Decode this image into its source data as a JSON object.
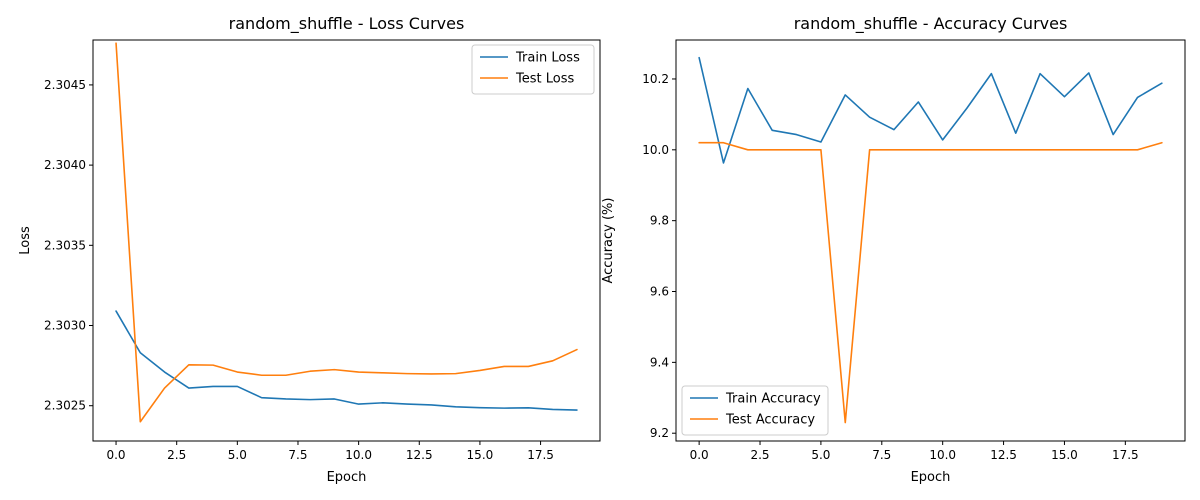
{
  "chart_data": [
    {
      "type": "line",
      "title": "random_shuffle - Loss Curves",
      "xlabel": "Epoch",
      "ylabel": "Loss",
      "xlim": [
        -0.95,
        19.95
      ],
      "ylim": [
        2.30228,
        2.30478
      ],
      "xticks": [
        0,
        2.5,
        5,
        7.5,
        10,
        12.5,
        15,
        17.5
      ],
      "xtick_labels": [
        "0.0",
        "2.5",
        "5.0",
        "7.5",
        "10.0",
        "12.5",
        "15.0",
        "17.5"
      ],
      "yticks": [
        2.3025,
        2.303,
        2.3035,
        2.304,
        2.3045
      ],
      "ytick_labels": [
        "2.3025",
        "2.3030",
        "2.3035",
        "2.3040",
        "2.3045"
      ],
      "legend": "top-right",
      "grid": false,
      "x": [
        0,
        1,
        2,
        3,
        4,
        5,
        6,
        7,
        8,
        9,
        10,
        11,
        12,
        13,
        14,
        15,
        16,
        17,
        18,
        19
      ],
      "series": [
        {
          "name": "Train Loss",
          "color": "#1f77b4",
          "values": [
            2.30309,
            2.30283,
            2.30271,
            2.30261,
            2.30262,
            2.30262,
            2.30255,
            2.302542,
            2.302538,
            2.302542,
            2.30251,
            2.302518,
            2.30251,
            2.302505,
            2.302493,
            2.302488,
            2.302485,
            2.302487,
            2.302477,
            2.302473
          ]
        },
        {
          "name": "Test Loss",
          "color": "#ff7f0e",
          "values": [
            2.30476,
            2.3024,
            2.30261,
            2.302755,
            2.302753,
            2.30271,
            2.30269,
            2.30269,
            2.302715,
            2.302725,
            2.30271,
            2.302705,
            2.3027,
            2.302698,
            2.3027,
            2.30272,
            2.302745,
            2.302745,
            2.30278,
            2.30285
          ]
        }
      ]
    },
    {
      "type": "line",
      "title": "random_shuffle - Accuracy Curves",
      "xlabel": "Epoch",
      "ylabel": "Accuracy (%)",
      "xlim": [
        -0.95,
        19.95
      ],
      "ylim": [
        9.178,
        10.31
      ],
      "xticks": [
        0,
        2.5,
        5,
        7.5,
        10,
        12.5,
        15,
        17.5
      ],
      "xtick_labels": [
        "0.0",
        "2.5",
        "5.0",
        "7.5",
        "10.0",
        "12.5",
        "15.0",
        "17.5"
      ],
      "yticks": [
        9.2,
        9.4,
        9.6,
        9.8,
        10.0,
        10.2
      ],
      "ytick_labels": [
        "9.2",
        "9.4",
        "9.6",
        "9.8",
        "10.0",
        "10.2"
      ],
      "legend": "bottom-left",
      "grid": false,
      "x": [
        0,
        1,
        2,
        3,
        4,
        5,
        6,
        7,
        8,
        9,
        10,
        11,
        12,
        13,
        14,
        15,
        16,
        17,
        18,
        19
      ],
      "series": [
        {
          "name": "Train Accuracy",
          "color": "#1f77b4",
          "values": [
            10.26,
            9.963,
            10.173,
            10.055,
            10.043,
            10.022,
            10.155,
            10.092,
            10.057,
            10.135,
            10.028,
            10.118,
            10.215,
            10.047,
            10.215,
            10.15,
            10.217,
            10.043,
            10.148,
            10.188
          ]
        },
        {
          "name": "Test Accuracy",
          "color": "#ff7f0e",
          "values": [
            10.02,
            10.02,
            10.0,
            10.0,
            10.0,
            10.0,
            9.23,
            10.0,
            10.0,
            10.0,
            10.0,
            10.0,
            10.0,
            10.0,
            10.0,
            10.0,
            10.0,
            10.0,
            10.0,
            10.02
          ]
        }
      ]
    }
  ]
}
